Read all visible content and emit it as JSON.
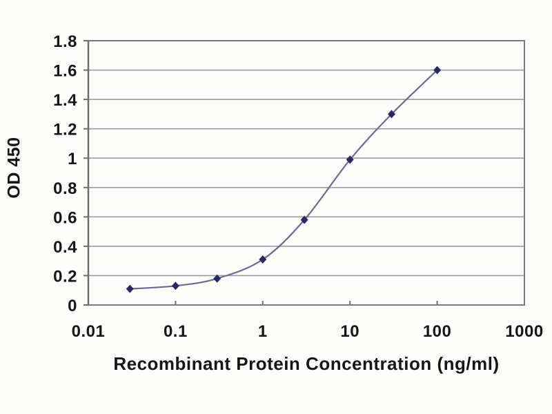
{
  "chart_data": {
    "type": "line",
    "title": "",
    "xlabel": "Recombinant Protein Concentration (ng/ml)",
    "ylabel": "OD 450",
    "x_scale": "log",
    "xlim": [
      0.01,
      1000
    ],
    "ylim": [
      0,
      1.8
    ],
    "x_ticks": [
      0.01,
      0.1,
      1,
      10,
      100,
      1000
    ],
    "x_tick_labels": [
      "0.01",
      "0.1",
      "1",
      "10",
      "100",
      "1000"
    ],
    "y_ticks": [
      0,
      0.2,
      0.4,
      0.6,
      0.8,
      1,
      1.2,
      1.4,
      1.6,
      1.8
    ],
    "y_tick_labels": [
      "0",
      "0.2",
      "0.4",
      "0.6",
      "0.8",
      "1",
      "1.2",
      "1.4",
      "1.6",
      "1.8"
    ],
    "x": [
      0.03,
      0.1,
      0.3,
      1,
      3,
      10,
      30,
      100
    ],
    "y": [
      0.11,
      0.13,
      0.18,
      0.31,
      0.58,
      0.99,
      1.3,
      1.6
    ],
    "grid": "horizontal",
    "legend": "none",
    "marker": "diamond",
    "line_style": "smooth",
    "colors": {
      "line": "#6b6b8e",
      "marker": "#2a2a63",
      "gridline": "#9b9b9b",
      "frame": "#7a7a7a",
      "axis": "#6e6e6e",
      "text": "#161616",
      "plot_background": "#fdfdfc",
      "page_background": "#fdfdfb"
    }
  }
}
